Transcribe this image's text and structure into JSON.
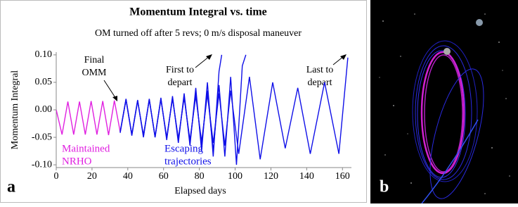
{
  "chart_data": {
    "type": "line",
    "title": "Momentum Integral vs. time",
    "subtitle": "OM turned off after 5 revs; 0 m/s disposal maneuver",
    "x_label": "Elapsed days",
    "y_label": "Momentum Integral",
    "xlim": [
      0,
      165
    ],
    "xticks": [
      0,
      20,
      40,
      60,
      80,
      100,
      120,
      140,
      160
    ],
    "ylim": [
      -0.105,
      0.105
    ],
    "yticks": [
      {
        "value": -0.1,
        "label": "-0.10"
      },
      {
        "value": -0.05,
        "label": "-0.05"
      },
      {
        "value": 0,
        "label": "0.00"
      },
      {
        "value": 0.05,
        "label": "0.05"
      },
      {
        "value": 0.1,
        "label": "0.10"
      }
    ],
    "series": [
      {
        "color": "#e020e0",
        "x": [
          0,
          3.25,
          6.5,
          9.75,
          13,
          16.25,
          19.5,
          22.75,
          26,
          29.25,
          32.5,
          35.75
        ],
        "values": [
          0.0,
          -0.045,
          0.015,
          -0.045,
          0.015,
          -0.045,
          0.016,
          -0.045,
          0.016,
          -0.046,
          0.017,
          -0.04
        ]
      },
      {
        "color": "#1010e8",
        "x": [
          35.75,
          39,
          42.25,
          45.5,
          48.75,
          52,
          55.25,
          58.5,
          61.75,
          65,
          68.25,
          71.5,
          74.75,
          78,
          81.25,
          84.5,
          87.75,
          91,
          92.5
        ],
        "values": [
          -0.04,
          0.02,
          -0.045,
          0.018,
          -0.05,
          0.02,
          -0.05,
          0.022,
          -0.055,
          0.025,
          -0.06,
          0.03,
          -0.065,
          0.04,
          -0.075,
          0.05,
          -0.085,
          0.07,
          0.1
        ]
      },
      {
        "color": "#1010e8",
        "x": [
          35.75,
          39,
          42.25,
          45.5,
          48.75,
          52,
          55.25,
          58.5,
          61.75,
          65,
          68.25,
          71.5,
          74.75,
          78,
          81.25,
          84.5,
          87.75,
          91,
          94.25,
          97.5,
          100.75,
          104,
          106
        ],
        "values": [
          -0.042,
          0.019,
          -0.047,
          0.017,
          -0.048,
          0.019,
          -0.05,
          0.02,
          -0.052,
          0.022,
          -0.055,
          0.025,
          -0.06,
          0.03,
          -0.065,
          0.035,
          -0.075,
          0.045,
          -0.085,
          0.06,
          -0.1,
          0.08,
          0.1
        ]
      },
      {
        "color": "#1010e8",
        "x": [
          35.75,
          39,
          42.25,
          45.5,
          48.75,
          52,
          55.25,
          58.5,
          61.75,
          65,
          68.25,
          71.5,
          74.75,
          78,
          81.25,
          84.5,
          87.75,
          91,
          94.25,
          97.5,
          102,
          108,
          114,
          121,
          128,
          135,
          142,
          150,
          158,
          163
        ],
        "values": [
          -0.04,
          0.018,
          -0.045,
          0.016,
          -0.046,
          0.018,
          -0.048,
          0.019,
          -0.05,
          0.02,
          -0.052,
          0.022,
          -0.055,
          0.025,
          -0.058,
          0.028,
          -0.06,
          0.03,
          -0.065,
          0.035,
          -0.08,
          0.06,
          -0.09,
          0.05,
          -0.07,
          0.04,
          -0.08,
          0.05,
          -0.08,
          0.095
        ]
      }
    ],
    "annotations": [
      {
        "text": [
          "Final",
          "OMM"
        ]
      },
      {
        "text": [
          "First to",
          "depart"
        ]
      },
      {
        "text": [
          "Last to",
          "depart"
        ]
      },
      {
        "text": [
          "Maintained",
          "NRHO"
        ]
      },
      {
        "text": [
          "Escaping",
          "trajectories"
        ]
      }
    ],
    "panel_labels": [
      "a",
      "b"
    ]
  }
}
